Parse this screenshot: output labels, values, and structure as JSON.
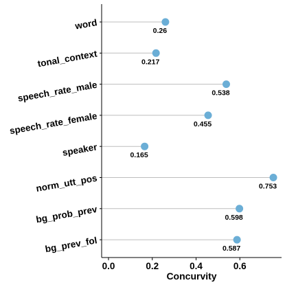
{
  "chart_data": {
    "type": "lollipop",
    "categories": [
      "word",
      "tonal_context",
      "speech_rate_male",
      "speech_rate_female",
      "speaker",
      "norm_utt_pos",
      "bg_prob_prev",
      "bg_prev_fol"
    ],
    "values": [
      0.26,
      0.217,
      0.538,
      0.455,
      0.165,
      0.753,
      0.598,
      0.587
    ],
    "value_labels": [
      "0.26",
      "0.217",
      "0.538",
      "0.455",
      "0.165",
      "0.753",
      "0.598",
      "0.587"
    ],
    "xlabel": "Concurvity",
    "ylabel": "",
    "xlim": [
      -0.03,
      0.77
    ],
    "xticks": [
      0.0,
      0.2,
      0.4,
      0.6
    ],
    "xtick_labels": [
      "0.0",
      "0.2",
      "0.4",
      "0.6"
    ],
    "point_color": "#6baed6",
    "stem_color": "#bdbdbd",
    "grid": false
  }
}
